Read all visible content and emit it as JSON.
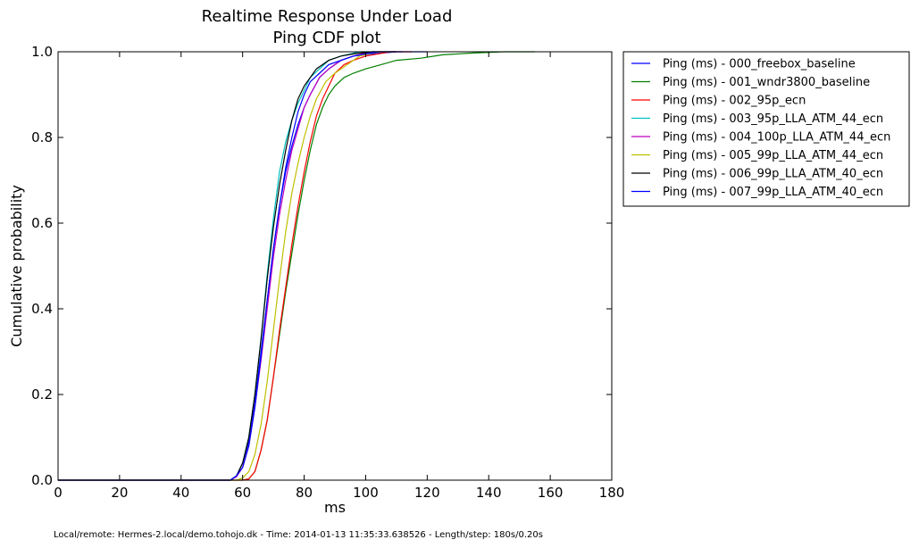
{
  "chart_data": {
    "type": "line",
    "title": "Realtime Response Under Load",
    "subtitle": "Ping CDF plot",
    "xlabel": "ms",
    "ylabel": "Cumulative probability",
    "xlim": [
      0,
      180
    ],
    "ylim": [
      0,
      1
    ],
    "x_ticks": [
      0,
      20,
      40,
      60,
      80,
      100,
      120,
      140,
      160,
      180
    ],
    "y_ticks": [
      0.0,
      0.2,
      0.4,
      0.6,
      0.8,
      1.0
    ],
    "x_tick_labels": [
      "0",
      "20",
      "40",
      "60",
      "80",
      "100",
      "120",
      "140",
      "160",
      "180"
    ],
    "y_tick_labels": [
      "0.0",
      "0.2",
      "0.4",
      "0.6",
      "0.8",
      "1.0"
    ],
    "grid": false,
    "legend_position": "outside top-right",
    "series": [
      {
        "name": "Ping (ms) - 000_freebox_baseline",
        "color": "#0000ff",
        "points": [
          [
            0,
            0
          ],
          [
            56,
            0
          ],
          [
            58,
            0.01
          ],
          [
            60,
            0.04
          ],
          [
            62,
            0.09
          ],
          [
            64,
            0.18
          ],
          [
            66,
            0.3
          ],
          [
            68,
            0.42
          ],
          [
            70,
            0.54
          ],
          [
            72,
            0.64
          ],
          [
            74,
            0.72
          ],
          [
            76,
            0.78
          ],
          [
            78,
            0.83
          ],
          [
            80,
            0.87
          ],
          [
            82,
            0.9
          ],
          [
            85,
            0.94
          ],
          [
            88,
            0.96
          ],
          [
            92,
            0.98
          ],
          [
            96,
            0.99
          ],
          [
            102,
            0.995
          ],
          [
            110,
            1.0
          ],
          [
            120,
            1.0
          ]
        ]
      },
      {
        "name": "Ping (ms) - 001_wndr3800_baseline",
        "color": "#008000",
        "points": [
          [
            0,
            0
          ],
          [
            60,
            0
          ],
          [
            62,
            0.003
          ],
          [
            64,
            0.02
          ],
          [
            66,
            0.07
          ],
          [
            68,
            0.14
          ],
          [
            70,
            0.24
          ],
          [
            72,
            0.34
          ],
          [
            74,
            0.44
          ],
          [
            76,
            0.53
          ],
          [
            78,
            0.62
          ],
          [
            80,
            0.7
          ],
          [
            82,
            0.77
          ],
          [
            84,
            0.83
          ],
          [
            86,
            0.87
          ],
          [
            88,
            0.9
          ],
          [
            90,
            0.92
          ],
          [
            93,
            0.94
          ],
          [
            96,
            0.95
          ],
          [
            100,
            0.96
          ],
          [
            105,
            0.97
          ],
          [
            110,
            0.98
          ],
          [
            118,
            0.985
          ],
          [
            125,
            0.993
          ],
          [
            135,
            0.997
          ],
          [
            145,
            1.0
          ],
          [
            155,
            1.0
          ]
        ]
      },
      {
        "name": "Ping (ms) - 002_95p_ecn",
        "color": "#ff0000",
        "points": [
          [
            0,
            0
          ],
          [
            60,
            0
          ],
          [
            62,
            0.003
          ],
          [
            64,
            0.02
          ],
          [
            66,
            0.07
          ],
          [
            68,
            0.14
          ],
          [
            70,
            0.24
          ],
          [
            72,
            0.35
          ],
          [
            74,
            0.45
          ],
          [
            76,
            0.55
          ],
          [
            78,
            0.64
          ],
          [
            80,
            0.72
          ],
          [
            82,
            0.79
          ],
          [
            84,
            0.85
          ],
          [
            86,
            0.89
          ],
          [
            88,
            0.92
          ],
          [
            90,
            0.95
          ],
          [
            93,
            0.97
          ],
          [
            96,
            0.98
          ],
          [
            100,
            0.99
          ],
          [
            108,
            1.0
          ],
          [
            115,
            1.0
          ]
        ]
      },
      {
        "name": "Ping (ms) - 003_95p_LLA_ATM_44_ecn",
        "color": "#00bfbf",
        "points": [
          [
            0,
            0
          ],
          [
            56,
            0
          ],
          [
            58,
            0.01
          ],
          [
            60,
            0.04
          ],
          [
            62,
            0.1
          ],
          [
            64,
            0.2
          ],
          [
            66,
            0.33
          ],
          [
            68,
            0.48
          ],
          [
            70,
            0.61
          ],
          [
            72,
            0.72
          ],
          [
            74,
            0.79
          ],
          [
            76,
            0.84
          ],
          [
            78,
            0.88
          ],
          [
            80,
            0.91
          ],
          [
            82,
            0.94
          ],
          [
            85,
            0.96
          ],
          [
            88,
            0.98
          ],
          [
            92,
            0.99
          ],
          [
            98,
            1.0
          ],
          [
            105,
            1.0
          ]
        ]
      },
      {
        "name": "Ping (ms) - 004_100p_LLA_ATM_44_ecn",
        "color": "#bf00bf",
        "points": [
          [
            0,
            0
          ],
          [
            56,
            0
          ],
          [
            58,
            0.008
          ],
          [
            60,
            0.03
          ],
          [
            62,
            0.08
          ],
          [
            64,
            0.17
          ],
          [
            66,
            0.28
          ],
          [
            68,
            0.4
          ],
          [
            70,
            0.52
          ],
          [
            72,
            0.62
          ],
          [
            74,
            0.7
          ],
          [
            76,
            0.77
          ],
          [
            78,
            0.82
          ],
          [
            80,
            0.87
          ],
          [
            82,
            0.9
          ],
          [
            85,
            0.94
          ],
          [
            88,
            0.96
          ],
          [
            92,
            0.98
          ],
          [
            96,
            0.99
          ],
          [
            102,
            1.0
          ],
          [
            110,
            1.0
          ]
        ]
      },
      {
        "name": "Ping (ms) - 005_99p_LLA_ATM_44_ecn",
        "color": "#bfbf00",
        "points": [
          [
            0,
            0
          ],
          [
            58,
            0
          ],
          [
            60,
            0.005
          ],
          [
            62,
            0.02
          ],
          [
            64,
            0.06
          ],
          [
            66,
            0.13
          ],
          [
            68,
            0.23
          ],
          [
            70,
            0.35
          ],
          [
            72,
            0.47
          ],
          [
            74,
            0.58
          ],
          [
            76,
            0.67
          ],
          [
            78,
            0.74
          ],
          [
            80,
            0.8
          ],
          [
            82,
            0.85
          ],
          [
            84,
            0.89
          ],
          [
            87,
            0.93
          ],
          [
            90,
            0.95
          ],
          [
            94,
            0.97
          ],
          [
            98,
            0.99
          ],
          [
            104,
            1.0
          ],
          [
            110,
            1.0
          ]
        ]
      },
      {
        "name": "Ping (ms) - 006_99p_LLA_ATM_40_ecn",
        "color": "#000000",
        "points": [
          [
            0,
            0
          ],
          [
            56,
            0
          ],
          [
            58,
            0.01
          ],
          [
            60,
            0.04
          ],
          [
            62,
            0.1
          ],
          [
            64,
            0.2
          ],
          [
            66,
            0.33
          ],
          [
            68,
            0.47
          ],
          [
            70,
            0.59
          ],
          [
            72,
            0.69
          ],
          [
            74,
            0.77
          ],
          [
            76,
            0.84
          ],
          [
            78,
            0.89
          ],
          [
            80,
            0.92
          ],
          [
            82,
            0.94
          ],
          [
            84,
            0.96
          ],
          [
            86,
            0.97
          ],
          [
            88,
            0.98
          ],
          [
            92,
            0.99
          ],
          [
            96,
            0.995
          ],
          [
            102,
            1.0
          ],
          [
            110,
            1.0
          ]
        ]
      },
      {
        "name": "Ping (ms) - 007_99p_LLA_ATM_40_ecn",
        "color": "#0000ff",
        "points": [
          [
            0,
            0
          ],
          [
            56,
            0
          ],
          [
            58,
            0.01
          ],
          [
            60,
            0.03
          ],
          [
            62,
            0.08
          ],
          [
            64,
            0.17
          ],
          [
            66,
            0.29
          ],
          [
            68,
            0.42
          ],
          [
            70,
            0.54
          ],
          [
            72,
            0.64
          ],
          [
            74,
            0.73
          ],
          [
            76,
            0.8
          ],
          [
            78,
            0.86
          ],
          [
            80,
            0.9
          ],
          [
            82,
            0.93
          ],
          [
            85,
            0.95
          ],
          [
            88,
            0.97
          ],
          [
            92,
            0.98
          ],
          [
            96,
            0.99
          ],
          [
            104,
            1.0
          ],
          [
            112,
            1.0
          ]
        ]
      }
    ]
  },
  "footer": "Local/remote: Hermes-2.local/demo.tohojo.dk - Time: 2014-01-13 11:35:33.638526 - Length/step: 180s/0.20s"
}
